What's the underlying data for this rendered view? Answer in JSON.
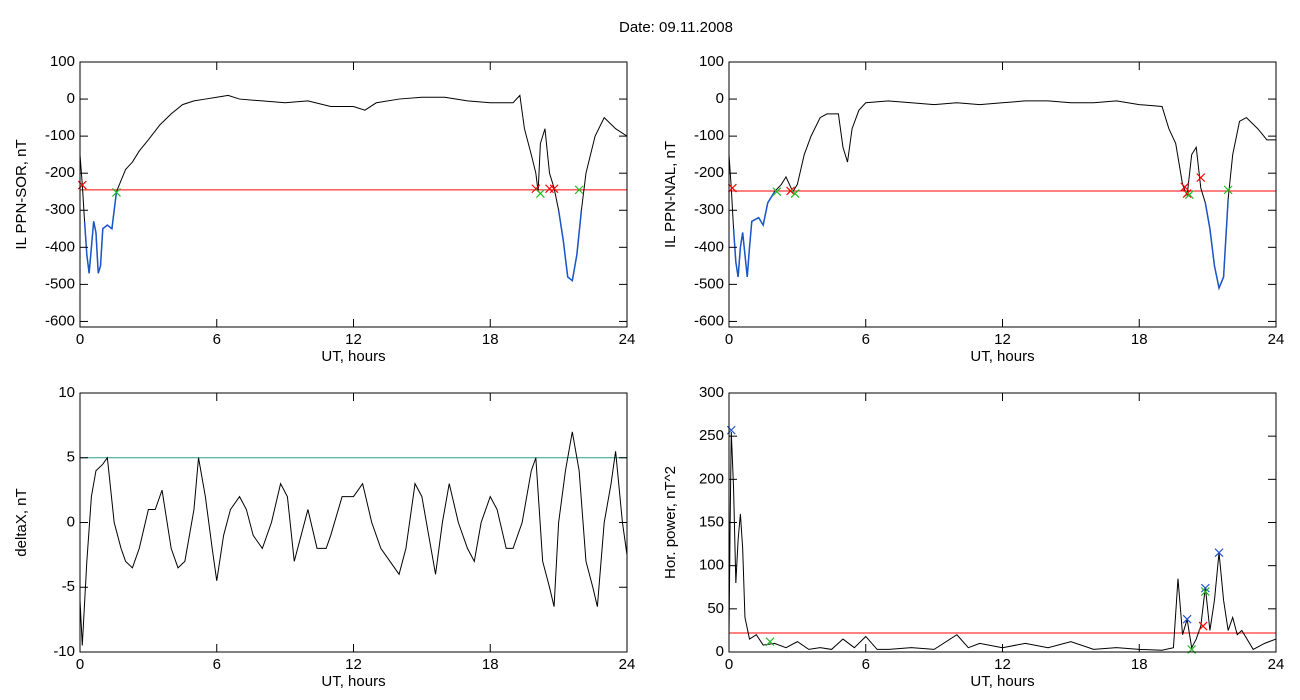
{
  "title": "Date:  09.11.2008",
  "chart_data": [
    {
      "type": "line",
      "xlabel": "UT, hours",
      "ylabel": "IL PPN-SOR, nT",
      "xlim": [
        0,
        24
      ],
      "xticks": [
        0,
        6,
        12,
        18,
        24
      ],
      "ylim": [
        -615,
        100
      ],
      "yticks": [
        100,
        0,
        -100,
        -200,
        -300,
        -400,
        -500,
        -600
      ],
      "x": [
        0,
        0.1,
        0.2,
        0.3,
        0.4,
        0.5,
        0.6,
        0.7,
        0.8,
        0.9,
        1.0,
        1.2,
        1.4,
        1.5,
        1.6,
        1.8,
        2.0,
        2.3,
        2.6,
        3.0,
        3.5,
        4.0,
        4.5,
        5,
        5.5,
        6,
        6.5,
        7,
        8,
        9,
        10,
        11,
        12,
        12.5,
        13,
        14,
        15,
        16,
        17,
        18,
        19,
        19.3,
        19.5,
        19.8,
        20,
        20.1,
        20.2,
        20.4,
        20.6,
        20.8,
        21,
        21.2,
        21.4,
        21.6,
        21.8,
        22,
        22.2,
        22.4,
        22.6,
        23,
        23.5,
        24
      ],
      "series": [
        {
          "color": "#000000",
          "below_color": "#1a56c8",
          "values": [
            -150,
            -230,
            -330,
            -420,
            -470,
            -400,
            -330,
            -360,
            -470,
            -450,
            -350,
            -340,
            -350,
            -300,
            -250,
            -220,
            -190,
            -170,
            -140,
            -110,
            -70,
            -40,
            -15,
            -5,
            0,
            5,
            10,
            0,
            -5,
            -10,
            -5,
            -20,
            -20,
            -30,
            -10,
            0,
            5,
            5,
            -5,
            -10,
            -10,
            10,
            -80,
            -150,
            -200,
            -250,
            -120,
            -80,
            -200,
            -240,
            -300,
            -380,
            -480,
            -490,
            -420,
            -300,
            -200,
            -150,
            -100,
            -50,
            -80,
            -100
          ]
        }
      ],
      "hlines": [
        {
          "value": -245,
          "color": "#ff0000"
        }
      ],
      "markers": [
        {
          "color": "#ff0000",
          "x": [
            0.1,
            20.0,
            20.6,
            20.8
          ],
          "values": [
            -232,
            -242,
            -242,
            -242
          ]
        },
        {
          "color": "#22bb22",
          "x": [
            1.6,
            20.2,
            21.9
          ],
          "values": [
            -252,
            -255,
            -245
          ]
        }
      ]
    },
    {
      "type": "line",
      "xlabel": "UT, hours",
      "ylabel": "IL PPN-NAL, nT",
      "xlim": [
        0,
        24
      ],
      "xticks": [
        0,
        6,
        12,
        18,
        24
      ],
      "ylim": [
        -615,
        100
      ],
      "yticks": [
        100,
        0,
        -100,
        -200,
        -300,
        -400,
        -500,
        -600
      ],
      "x": [
        0,
        0.1,
        0.2,
        0.3,
        0.4,
        0.5,
        0.6,
        0.7,
        0.8,
        0.9,
        1.0,
        1.3,
        1.5,
        1.7,
        2.0,
        2.3,
        2.5,
        2.8,
        3.0,
        3.3,
        3.6,
        4,
        4.3,
        4.8,
        5,
        5.2,
        5.4,
        5.7,
        6,
        7,
        8,
        9,
        10,
        11,
        12,
        13,
        14,
        15,
        16,
        17,
        18,
        19,
        19.3,
        19.6,
        19.9,
        20.1,
        20.3,
        20.5,
        20.7,
        20.9,
        21.1,
        21.3,
        21.5,
        21.7,
        21.9,
        22.1,
        22.4,
        22.7,
        23.2,
        23.6,
        24
      ],
      "series": [
        {
          "color": "#000000",
          "below_color": "#1a56c8",
          "values": [
            -150,
            -240,
            -350,
            -440,
            -480,
            -400,
            -360,
            -420,
            -480,
            -400,
            -330,
            -320,
            -340,
            -280,
            -250,
            -230,
            -210,
            -250,
            -230,
            -150,
            -100,
            -50,
            -40,
            -40,
            -130,
            -170,
            -80,
            -30,
            -10,
            -5,
            -10,
            -15,
            -10,
            -15,
            -10,
            -5,
            -5,
            -10,
            -10,
            -5,
            -15,
            -20,
            -80,
            -120,
            -230,
            -260,
            -150,
            -130,
            -240,
            -280,
            -350,
            -450,
            -510,
            -480,
            -270,
            -150,
            -60,
            -50,
            -80,
            -110,
            -110
          ]
        }
      ],
      "hlines": [
        {
          "value": -248,
          "color": "#ff0000"
        }
      ],
      "markers": [
        {
          "color": "#ff0000",
          "x": [
            0.15,
            2.7,
            20.0,
            20.1,
            20.7
          ],
          "values": [
            -240,
            -248,
            -237,
            -255,
            -212
          ]
        },
        {
          "color": "#22bb22",
          "x": [
            2.1,
            2.9,
            20.2,
            21.9
          ],
          "values": [
            -250,
            -255,
            -258,
            -245
          ]
        }
      ]
    },
    {
      "type": "line",
      "xlabel": "UT, hours",
      "ylabel": "deltaX, nT",
      "xlim": [
        0,
        24
      ],
      "xticks": [
        0,
        6,
        12,
        18,
        24
      ],
      "ylim": [
        -10,
        10
      ],
      "yticks": [
        10,
        5,
        0,
        -5,
        -10
      ],
      "x": [
        0,
        0.1,
        0.3,
        0.5,
        0.7,
        1,
        1.2,
        1.5,
        1.8,
        2,
        2.3,
        2.6,
        3,
        3.3,
        3.6,
        4,
        4.3,
        4.6,
        5,
        5.2,
        5.5,
        5.8,
        6,
        6.3,
        6.6,
        7,
        7.3,
        7.6,
        8,
        8.4,
        8.8,
        9.1,
        9.4,
        9.7,
        10,
        10.4,
        10.8,
        11,
        11.5,
        12,
        12.4,
        12.8,
        13.2,
        13.6,
        14,
        14.3,
        14.7,
        15,
        15.3,
        15.6,
        15.9,
        16.2,
        16.6,
        17,
        17.3,
        17.6,
        18,
        18.3,
        18.7,
        19,
        19.4,
        19.8,
        20,
        20.3,
        20.6,
        20.8,
        21,
        21.3,
        21.6,
        21.9,
        22.2,
        22.5,
        22.7,
        23,
        23.3,
        23.5,
        23.8,
        24
      ],
      "series": [
        {
          "color": "#000000",
          "values": [
            -6,
            -9.5,
            -3,
            2,
            4,
            4.5,
            5,
            0,
            -2,
            -3,
            -3.5,
            -2,
            1,
            1,
            2.5,
            -2,
            -3.5,
            -3,
            1,
            5,
            2,
            -2,
            -4.5,
            -1,
            1,
            2,
            1,
            -1,
            -2,
            0,
            3,
            2,
            -3,
            -1,
            1,
            -2,
            -2,
            -1,
            2,
            2,
            3,
            0,
            -2,
            -3,
            -4,
            -2,
            3,
            2,
            -1,
            -4,
            0,
            3,
            0,
            -2,
            -3,
            0,
            2,
            1,
            -2,
            -2,
            0,
            4,
            5,
            -3,
            -5,
            -6.5,
            0,
            4,
            7,
            4,
            -3,
            -5,
            -6.5,
            0,
            3,
            5.5,
            0,
            -2.5
          ]
        }
      ],
      "hlines": [
        {
          "value": 5,
          "color": "#2a9d8f"
        }
      ],
      "markers": []
    },
    {
      "type": "line",
      "xlabel": "UT, hours",
      "ylabel": "Hor. power, nT^2",
      "xlim": [
        0,
        24
      ],
      "xticks": [
        0,
        6,
        12,
        18,
        24
      ],
      "ylim": [
        0,
        300
      ],
      "yticks": [
        300,
        250,
        200,
        150,
        100,
        50,
        0
      ],
      "x": [
        0,
        0.05,
        0.1,
        0.2,
        0.3,
        0.4,
        0.5,
        0.6,
        0.7,
        0.9,
        1.2,
        1.5,
        2,
        2.5,
        3,
        3.5,
        4,
        4.5,
        5,
        5.5,
        6,
        6.5,
        7,
        8,
        9,
        10,
        10.5,
        11,
        12,
        13,
        14,
        15,
        16,
        17,
        18,
        19,
        19.5,
        19.7,
        19.9,
        20.1,
        20.3,
        20.5,
        20.7,
        20.9,
        21.1,
        21.3,
        21.5,
        21.7,
        21.9,
        22.1,
        22.3,
        22.5,
        23,
        23.5,
        24
      ],
      "series": [
        {
          "color": "#000000",
          "values": [
            20,
            150,
            255,
            190,
            80,
            130,
            160,
            120,
            40,
            15,
            20,
            8,
            10,
            5,
            12,
            3,
            5,
            3,
            15,
            5,
            18,
            3,
            3,
            5,
            3,
            20,
            5,
            10,
            5,
            10,
            5,
            12,
            3,
            5,
            3,
            2,
            5,
            85,
            20,
            38,
            5,
            15,
            30,
            75,
            25,
            60,
            115,
            60,
            25,
            40,
            20,
            25,
            3,
            10,
            15
          ]
        }
      ],
      "hlines": [
        {
          "value": 22,
          "color": "#ff0000"
        }
      ],
      "markers": [
        {
          "color": "#2255cc",
          "x": [
            0.1,
            20.1,
            20.9,
            21.5
          ],
          "values": [
            257,
            38,
            74,
            115
          ]
        },
        {
          "color": "#22bb22",
          "x": [
            1.8,
            20.3,
            20.9
          ],
          "values": [
            12,
            3,
            70
          ]
        },
        {
          "color": "#ff0000",
          "x": [
            20.8
          ],
          "values": [
            30
          ]
        }
      ]
    }
  ]
}
